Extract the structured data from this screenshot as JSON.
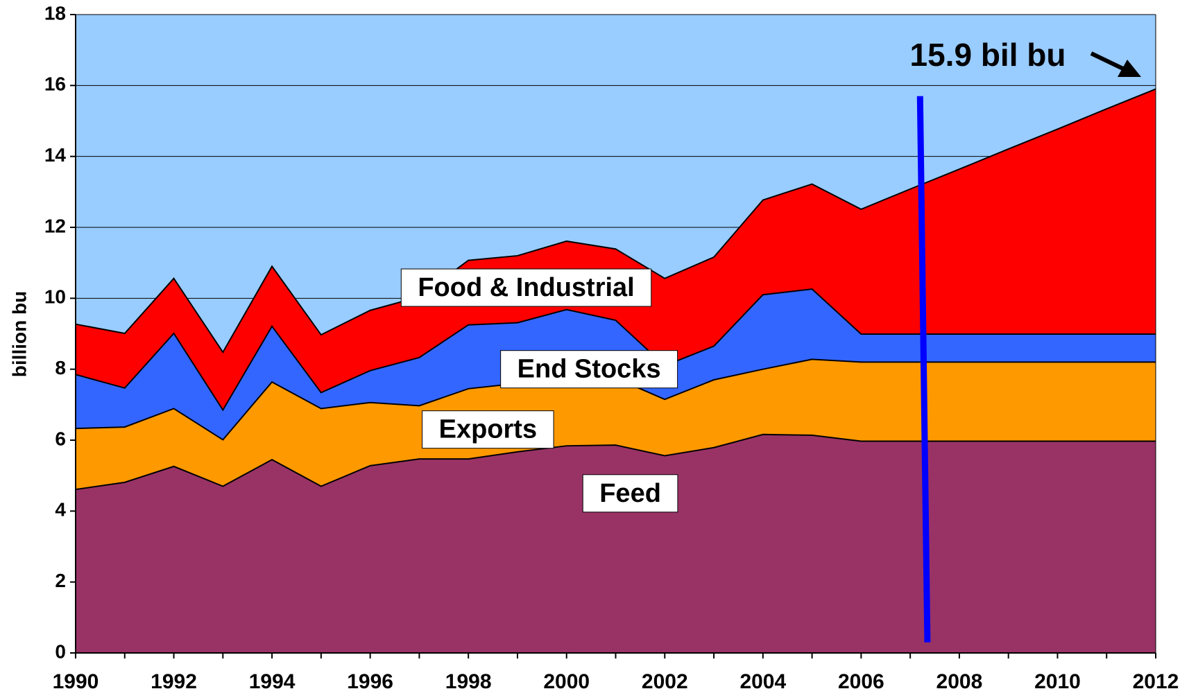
{
  "chart_data": {
    "type": "stacked_area",
    "y_label": "billion bu",
    "annotation": "15.9 bil bu",
    "x": [
      1990,
      1991,
      1992,
      1993,
      1994,
      1995,
      1996,
      1997,
      1998,
      1999,
      2000,
      2001,
      2002,
      2003,
      2004,
      2005,
      2006,
      2007,
      2008,
      2009,
      2010,
      2011,
      2012
    ],
    "series": [
      {
        "name": "Feed",
        "color": "#993366",
        "values": [
          4.61,
          4.81,
          5.26,
          4.7,
          5.45,
          4.7,
          5.28,
          5.47,
          5.47,
          5.67,
          5.84,
          5.86,
          5.56,
          5.79,
          6.16,
          6.14,
          5.97,
          5.97,
          5.97,
          5.97,
          5.97,
          5.97,
          5.97
        ]
      },
      {
        "name": "Exports",
        "color": "#ff9900",
        "values": [
          1.72,
          1.56,
          1.63,
          1.31,
          2.19,
          2.19,
          1.78,
          1.5,
          1.98,
          1.93,
          1.95,
          1.89,
          1.59,
          1.91,
          1.84,
          2.14,
          2.23,
          2.23,
          2.23,
          2.23,
          2.23,
          2.23,
          2.23
        ]
      },
      {
        "name": "End Stocks",
        "color": "#3366ff",
        "values": [
          1.52,
          1.1,
          2.12,
          0.84,
          1.57,
          0.45,
          0.9,
          1.36,
          1.8,
          1.71,
          1.89,
          1.63,
          0.95,
          0.95,
          2.1,
          1.98,
          0.79,
          0.79,
          0.79,
          0.79,
          0.79,
          0.79,
          0.79
        ]
      },
      {
        "name": "Food & Industrial",
        "color": "#ff0000",
        "values": [
          1.42,
          1.54,
          1.55,
          1.63,
          1.69,
          1.63,
          1.7,
          1.71,
          1.82,
          1.89,
          1.93,
          2.01,
          2.46,
          2.51,
          2.67,
          2.96,
          3.52,
          4.09,
          4.65,
          5.22,
          5.78,
          6.35,
          6.91
        ]
      }
    ],
    "xlim": [
      1990,
      2012
    ],
    "xticks": [
      1990,
      1992,
      1994,
      1996,
      1998,
      2000,
      2002,
      2004,
      2006,
      2008,
      2010,
      2012
    ],
    "ylim": [
      0,
      18
    ],
    "yticks": [
      0,
      2,
      4,
      6,
      8,
      10,
      12,
      14,
      16,
      18
    ],
    "grid": true,
    "background": "#99ccff"
  }
}
